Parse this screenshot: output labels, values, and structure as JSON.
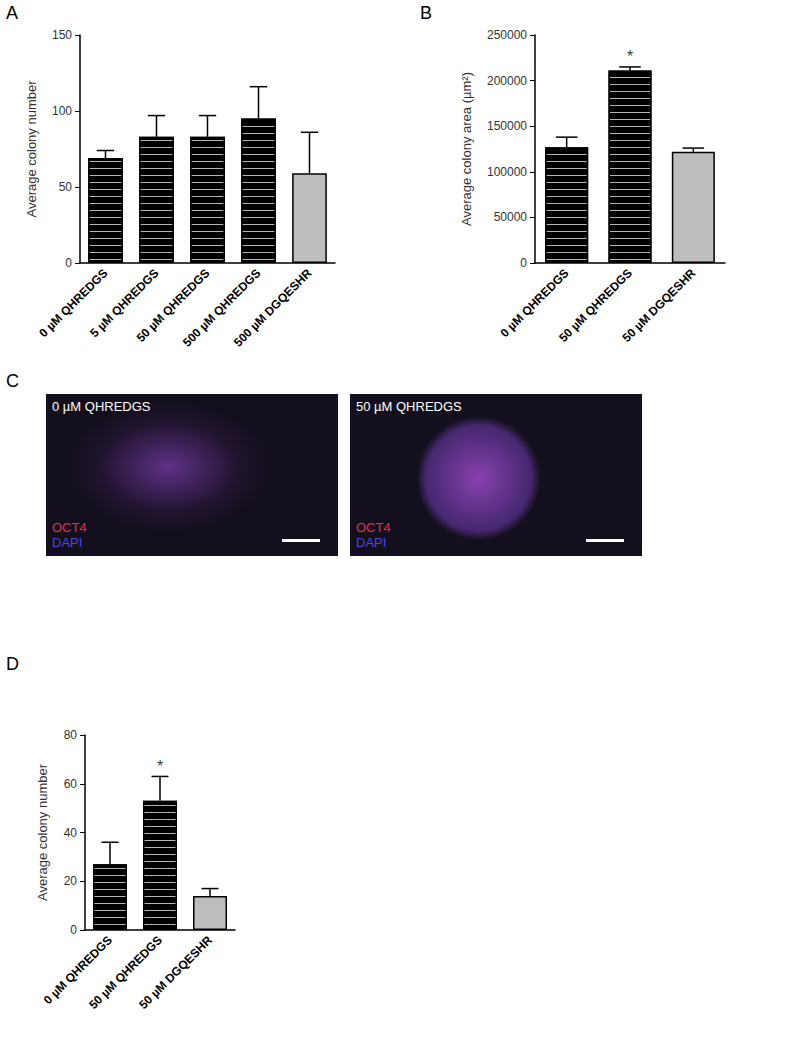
{
  "chart_data": [
    {
      "panel": "A",
      "type": "bar",
      "y_label": "Average colony number",
      "categories": [
        "0 µM QHREDGS",
        "5 µM QHREDGS",
        "50 µM QHREDGS",
        "500 µM QHREDGS",
        "500 µM DGQESHR"
      ],
      "values": [
        69,
        83,
        83,
        95,
        59
      ],
      "errors": [
        5,
        14,
        14,
        21,
        27
      ],
      "colors": [
        "#000000",
        "#000000",
        "#000000",
        "#000000",
        "#bdbdbd"
      ],
      "ylim": [
        0,
        150
      ],
      "yticks": [
        0,
        50,
        100,
        150
      ],
      "grid": false
    },
    {
      "panel": "B",
      "type": "bar",
      "y_label": "Average colony area (µm²)",
      "categories": [
        "0 µM QHREDGS",
        "50 µM QHREDGS",
        "50 µM DGQESHR"
      ],
      "values": [
        127000,
        211000,
        122000
      ],
      "errors": [
        11000,
        4000,
        4000
      ],
      "colors": [
        "#000000",
        "#000000",
        "#bdbdbd"
      ],
      "annotations": [
        {
          "category": "50 µM QHREDGS",
          "text": "*"
        }
      ],
      "ylim": [
        0,
        250000
      ],
      "yticks": [
        0,
        50000,
        100000,
        150000,
        200000,
        250000
      ],
      "grid": false
    },
    {
      "panel": "D",
      "type": "bar",
      "y_label": "Average colony number",
      "categories": [
        "0 µM QHREDGS",
        "50 µM QHREDGS",
        "50 µM DGQESHR"
      ],
      "values": [
        27,
        53,
        14
      ],
      "errors": [
        9,
        10,
        3
      ],
      "colors": [
        "#000000",
        "#000000",
        "#bdbdbd"
      ],
      "annotations": [
        {
          "category": "50 µM QHREDGS",
          "text": "*"
        }
      ],
      "ylim": [
        0,
        80
      ],
      "yticks": [
        0,
        20,
        40,
        60,
        80
      ],
      "grid": false
    }
  ],
  "image_panels": {
    "panel": "C",
    "images": [
      {
        "title": "0 µM QHREDGS",
        "stains": [
          {
            "text": "OCT4",
            "color": "#e0304f"
          },
          {
            "text": "DAPI",
            "color": "#4a4ae0"
          }
        ]
      },
      {
        "title": "50 µM QHREDGS",
        "stains": [
          {
            "text": "OCT4",
            "color": "#e0304f"
          },
          {
            "text": "DAPI",
            "color": "#4a4ae0"
          }
        ]
      }
    ]
  }
}
